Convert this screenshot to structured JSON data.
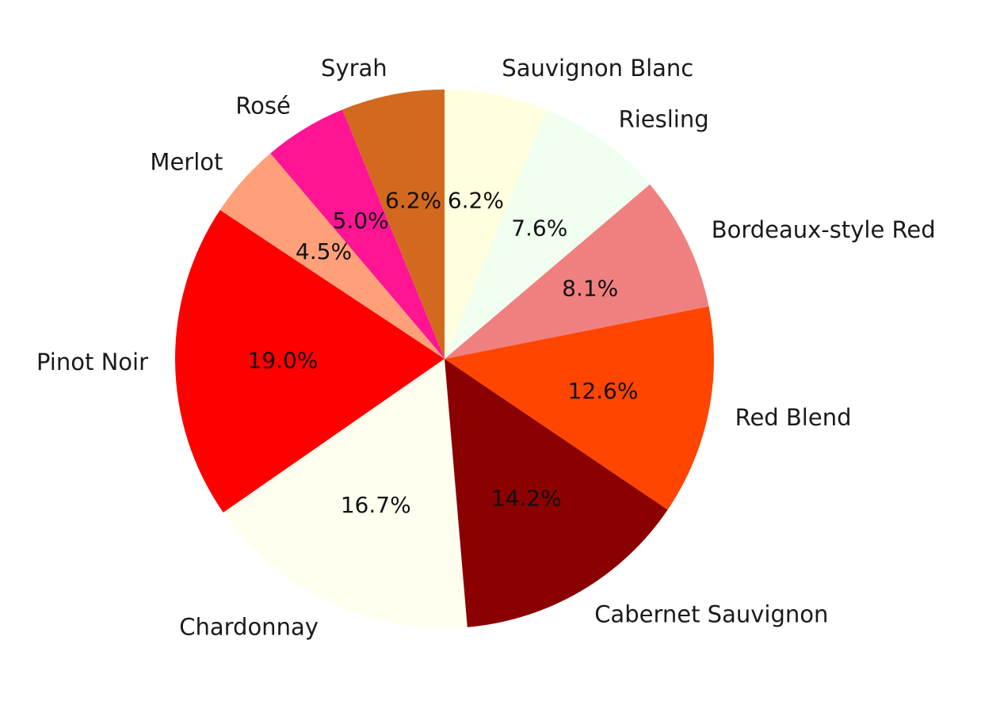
{
  "chart_data": {
    "type": "pie",
    "title": "",
    "start_angle_deg": 90,
    "direction": "counterclockwise",
    "slices": [
      {
        "label": "Syrah",
        "value": 6.2,
        "pct_label": "6.2%",
        "color": "#D2691E"
      },
      {
        "label": "Rosé",
        "value": 5.0,
        "pct_label": "5.0%",
        "color": "#FF1493"
      },
      {
        "label": "Merlot",
        "value": 4.5,
        "pct_label": "4.5%",
        "color": "#FFA07A"
      },
      {
        "label": "Pinot Noir",
        "value": 19.0,
        "pct_label": "19.0%",
        "color": "#FF0000"
      },
      {
        "label": "Chardonnay",
        "value": 16.7,
        "pct_label": "16.7%",
        "color": "#FFFFF0"
      },
      {
        "label": "Cabernet Sauvignon",
        "value": 14.2,
        "pct_label": "14.2%",
        "color": "#8B0000"
      },
      {
        "label": "Red Blend",
        "value": 12.6,
        "pct_label": "12.6%",
        "color": "#FF4500"
      },
      {
        "label": "Bordeaux-style Red",
        "value": 8.1,
        "pct_label": "8.1%",
        "color": "#F08080"
      },
      {
        "label": "Riesling",
        "value": 7.6,
        "pct_label": "7.6%",
        "color": "#F0FFF0"
      },
      {
        "label": "Sauvignon Blanc",
        "value": 6.2,
        "pct_label": "6.2%",
        "color": "#FFFFE0"
      }
    ]
  }
}
